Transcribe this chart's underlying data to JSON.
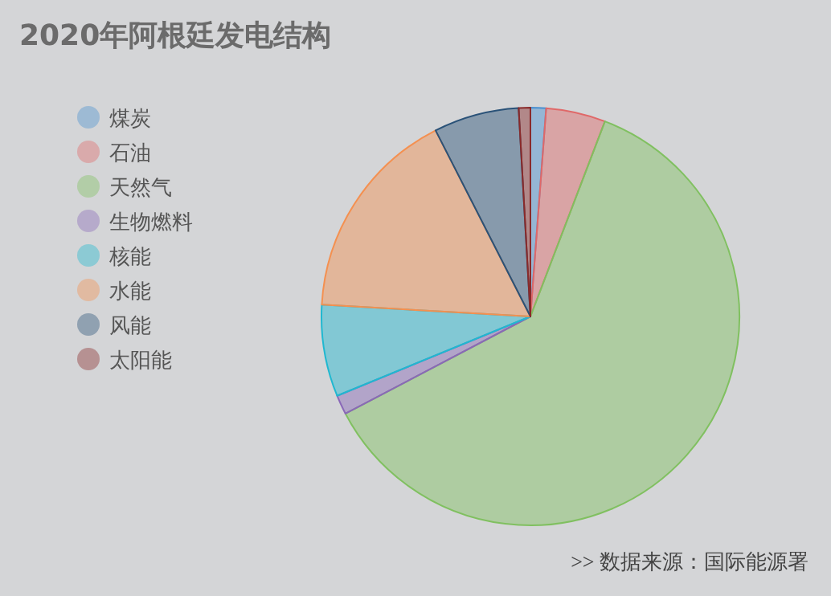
{
  "chart_data": {
    "type": "pie",
    "title": "2020年阿根廷发电结构",
    "categories": [
      "煤炭",
      "石油",
      "天然气",
      "生物燃料",
      "核能",
      "水能",
      "风能",
      "太阳能"
    ],
    "values": [
      1.2,
      4.6,
      61.5,
      1.5,
      7.1,
      16.6,
      6.6,
      0.9
    ],
    "colors": [
      "#4a90d0",
      "#e06868",
      "#80c060",
      "#8a68b8",
      "#20b8d0",
      "#f49050",
      "#2a5278",
      "#8a2a2a"
    ],
    "legend": "left",
    "annotations": [
      ">>  数据来源：国际能源署"
    ]
  }
}
